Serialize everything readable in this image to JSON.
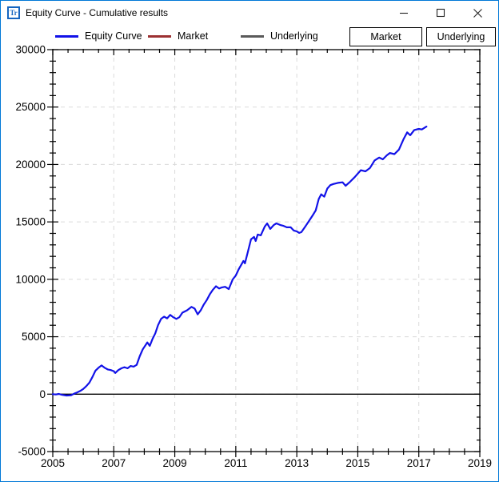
{
  "window": {
    "title": "Equity Curve - Cumulative results",
    "icon_text": "Tr"
  },
  "legend": {
    "items": [
      {
        "label": "Equity Curve",
        "color": "#1212e8"
      },
      {
        "label": "Market",
        "color": "#9c3132"
      },
      {
        "label": "Underlying",
        "color": "#5a5a5a"
      }
    ]
  },
  "toolbar": {
    "buttons": [
      {
        "label": "Market"
      },
      {
        "label": "Underlying"
      }
    ]
  },
  "chart_data": {
    "type": "line",
    "title": "Equity Curve - Cumulative results",
    "xlabel": "",
    "ylabel": "",
    "xlim": [
      2005,
      2019
    ],
    "ylim": [
      -5000,
      30000
    ],
    "x_ticks": [
      2005,
      2007,
      2009,
      2011,
      2013,
      2015,
      2017,
      2019
    ],
    "x_minor_step": 0.5,
    "y_ticks": [
      -5000,
      0,
      5000,
      10000,
      15000,
      20000,
      25000,
      30000
    ],
    "y_minor_step": 1000,
    "grid": true,
    "grid_style": "dashed",
    "grid_color": "#dadada",
    "axis_color": "#000000",
    "zero_line": true,
    "legend_position": "top",
    "series": [
      {
        "name": "Equity Curve",
        "color": "#1212e8",
        "points": [
          [
            2005.0,
            0
          ],
          [
            2005.1,
            -30
          ],
          [
            2005.2,
            20
          ],
          [
            2005.3,
            -60
          ],
          [
            2005.45,
            -120
          ],
          [
            2005.6,
            -90
          ],
          [
            2005.7,
            40
          ],
          [
            2005.8,
            150
          ],
          [
            2005.9,
            280
          ],
          [
            2006.0,
            450
          ],
          [
            2006.1,
            700
          ],
          [
            2006.2,
            1000
          ],
          [
            2006.3,
            1500
          ],
          [
            2006.4,
            2050
          ],
          [
            2006.5,
            2300
          ],
          [
            2006.6,
            2500
          ],
          [
            2006.7,
            2300
          ],
          [
            2006.8,
            2150
          ],
          [
            2006.9,
            2100
          ],
          [
            2007.0,
            2000
          ],
          [
            2007.05,
            1850
          ],
          [
            2007.15,
            2100
          ],
          [
            2007.25,
            2250
          ],
          [
            2007.35,
            2350
          ],
          [
            2007.45,
            2250
          ],
          [
            2007.55,
            2450
          ],
          [
            2007.65,
            2400
          ],
          [
            2007.75,
            2550
          ],
          [
            2007.85,
            3300
          ],
          [
            2007.95,
            3900
          ],
          [
            2008.05,
            4300
          ],
          [
            2008.1,
            4500
          ],
          [
            2008.18,
            4200
          ],
          [
            2008.27,
            4800
          ],
          [
            2008.36,
            5300
          ],
          [
            2008.45,
            6000
          ],
          [
            2008.55,
            6550
          ],
          [
            2008.65,
            6750
          ],
          [
            2008.75,
            6600
          ],
          [
            2008.85,
            6900
          ],
          [
            2008.95,
            6700
          ],
          [
            2009.05,
            6550
          ],
          [
            2009.15,
            6700
          ],
          [
            2009.25,
            7100
          ],
          [
            2009.4,
            7300
          ],
          [
            2009.55,
            7600
          ],
          [
            2009.65,
            7450
          ],
          [
            2009.75,
            6950
          ],
          [
            2009.85,
            7300
          ],
          [
            2009.95,
            7800
          ],
          [
            2010.05,
            8200
          ],
          [
            2010.15,
            8700
          ],
          [
            2010.25,
            9100
          ],
          [
            2010.35,
            9400
          ],
          [
            2010.45,
            9200
          ],
          [
            2010.55,
            9300
          ],
          [
            2010.65,
            9350
          ],
          [
            2010.77,
            9150
          ],
          [
            2010.9,
            9990
          ],
          [
            2011.0,
            10340
          ],
          [
            2011.1,
            10900
          ],
          [
            2011.25,
            11600
          ],
          [
            2011.3,
            11390
          ],
          [
            2011.4,
            12430
          ],
          [
            2011.5,
            13480
          ],
          [
            2011.6,
            13690
          ],
          [
            2011.65,
            13340
          ],
          [
            2011.72,
            13900
          ],
          [
            2011.82,
            13830
          ],
          [
            2011.95,
            14600
          ],
          [
            2012.03,
            14870
          ],
          [
            2012.13,
            14390
          ],
          [
            2012.25,
            14740
          ],
          [
            2012.33,
            14870
          ],
          [
            2012.45,
            14740
          ],
          [
            2012.55,
            14670
          ],
          [
            2012.67,
            14530
          ],
          [
            2012.8,
            14530
          ],
          [
            2012.9,
            14250
          ],
          [
            2013.0,
            14180
          ],
          [
            2013.08,
            14040
          ],
          [
            2013.15,
            14110
          ],
          [
            2013.26,
            14530
          ],
          [
            2013.4,
            15080
          ],
          [
            2013.52,
            15570
          ],
          [
            2013.62,
            16000
          ],
          [
            2013.72,
            17000
          ],
          [
            2013.8,
            17400
          ],
          [
            2013.9,
            17200
          ],
          [
            2014.0,
            17900
          ],
          [
            2014.1,
            18200
          ],
          [
            2014.2,
            18300
          ],
          [
            2014.35,
            18400
          ],
          [
            2014.5,
            18450
          ],
          [
            2014.6,
            18150
          ],
          [
            2014.75,
            18500
          ],
          [
            2014.9,
            18900
          ],
          [
            2015.0,
            19200
          ],
          [
            2015.1,
            19500
          ],
          [
            2015.25,
            19400
          ],
          [
            2015.4,
            19700
          ],
          [
            2015.55,
            20350
          ],
          [
            2015.7,
            20600
          ],
          [
            2015.82,
            20450
          ],
          [
            2015.95,
            20800
          ],
          [
            2016.05,
            21000
          ],
          [
            2016.2,
            20900
          ],
          [
            2016.35,
            21300
          ],
          [
            2016.5,
            22200
          ],
          [
            2016.62,
            22800
          ],
          [
            2016.72,
            22550
          ],
          [
            2016.85,
            23000
          ],
          [
            2017.0,
            23100
          ],
          [
            2017.1,
            23050
          ],
          [
            2017.25,
            23300
          ]
        ]
      },
      {
        "name": "Market",
        "color": "#9c3132",
        "points": []
      },
      {
        "name": "Underlying",
        "color": "#5a5a5a",
        "points": []
      }
    ]
  }
}
